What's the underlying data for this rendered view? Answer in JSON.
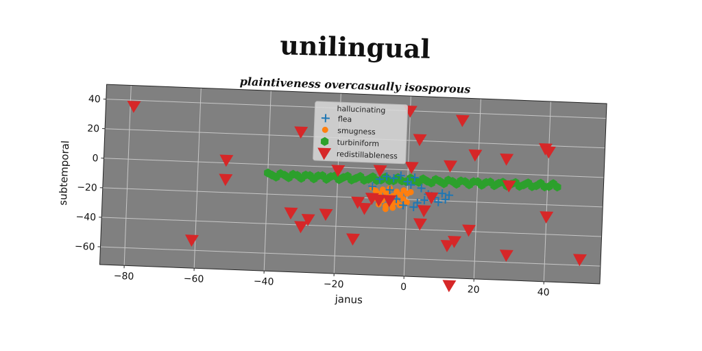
{
  "chart_data": {
    "type": "scatter",
    "title": "unilingual",
    "subtitle": "plaintiveness overcasually isosporous",
    "xlabel": "janus",
    "ylabel": "subtemporal",
    "xlim": [
      -87,
      56
    ],
    "ylim": [
      -72,
      50
    ],
    "xticks": [
      -80,
      -60,
      -40,
      -20,
      0,
      20,
      40
    ],
    "yticks": [
      40,
      20,
      0,
      -20,
      -40,
      -60
    ],
    "xtick_labels": [
      "−80",
      "−60",
      "−40",
      "−20",
      "0",
      "20",
      "40"
    ],
    "ytick_labels": [
      "40",
      "20",
      "0",
      "−20",
      "−40",
      "−60"
    ],
    "grid": true,
    "background": "#808080",
    "legend": {
      "title": "hallucinating",
      "placement": "top-center",
      "entries": [
        "flea",
        "smugness",
        "turbiniform",
        "redistillableness"
      ]
    },
    "series": [
      {
        "name": "flea",
        "marker": "plus",
        "color": "#1f77b4",
        "x": [
          -8,
          -6,
          -4,
          -2,
          0,
          2,
          -10,
          -5,
          1,
          4,
          6,
          8,
          10,
          12,
          -3,
          3,
          7,
          5,
          9,
          -1,
          2,
          11
        ],
        "y": [
          -7,
          -5,
          -6,
          -4,
          -8,
          -5,
          -12,
          -14,
          -10,
          -12,
          -16,
          -18,
          -15,
          -16,
          -20,
          -22,
          -17,
          -20,
          -21,
          -24,
          -25,
          -19
        ]
      },
      {
        "name": "smugness",
        "marker": "dot",
        "color": "#ff7f0e",
        "x": [
          -10,
          -9,
          -8,
          -7,
          -6,
          -5,
          -4,
          -3,
          -2,
          -1,
          0,
          1,
          -9,
          -7,
          -5,
          -3,
          -1,
          -8,
          -6,
          -4,
          -2,
          0,
          -6,
          -4
        ],
        "y": [
          -13,
          -15,
          -17,
          -14,
          -16,
          -13,
          -18,
          -15,
          -17,
          -14,
          -16,
          -15,
          -20,
          -21,
          -19,
          -22,
          -20,
          -24,
          -25,
          -23,
          -24,
          -22,
          -27,
          -26
        ]
      },
      {
        "name": "turbiniform",
        "marker": "hexagon",
        "color": "#2ca02c",
        "x_range": [
          -40,
          43
        ],
        "x_step": 1.2,
        "y_center": -7,
        "y_spread": 1.5
      },
      {
        "name": "redistillableness",
        "marker": "triangle-down",
        "color": "#d62728",
        "x": [
          -79,
          -52,
          -52,
          -61,
          -31,
          -33,
          -28,
          -30,
          -23,
          -20,
          -14,
          -15,
          -12,
          -8,
          -10,
          -8,
          -5,
          0,
          1,
          3,
          5,
          4,
          7,
          12,
          15,
          12,
          13,
          14,
          18,
          19,
          28,
          29,
          29,
          39,
          40,
          40,
          50
        ],
        "y": [
          36,
          2,
          -11,
          -53,
          23,
          -32,
          -36,
          -41,
          -32,
          -2,
          -23,
          -48,
          -27,
          -1,
          -20,
          -21,
          -21,
          40,
          2,
          21,
          -27,
          -36,
          -18,
          4,
          35,
          -50,
          -77,
          -47,
          -39,
          12,
          10,
          -8,
          -55,
          18,
          16,
          -28,
          -56
        ]
      }
    ]
  }
}
